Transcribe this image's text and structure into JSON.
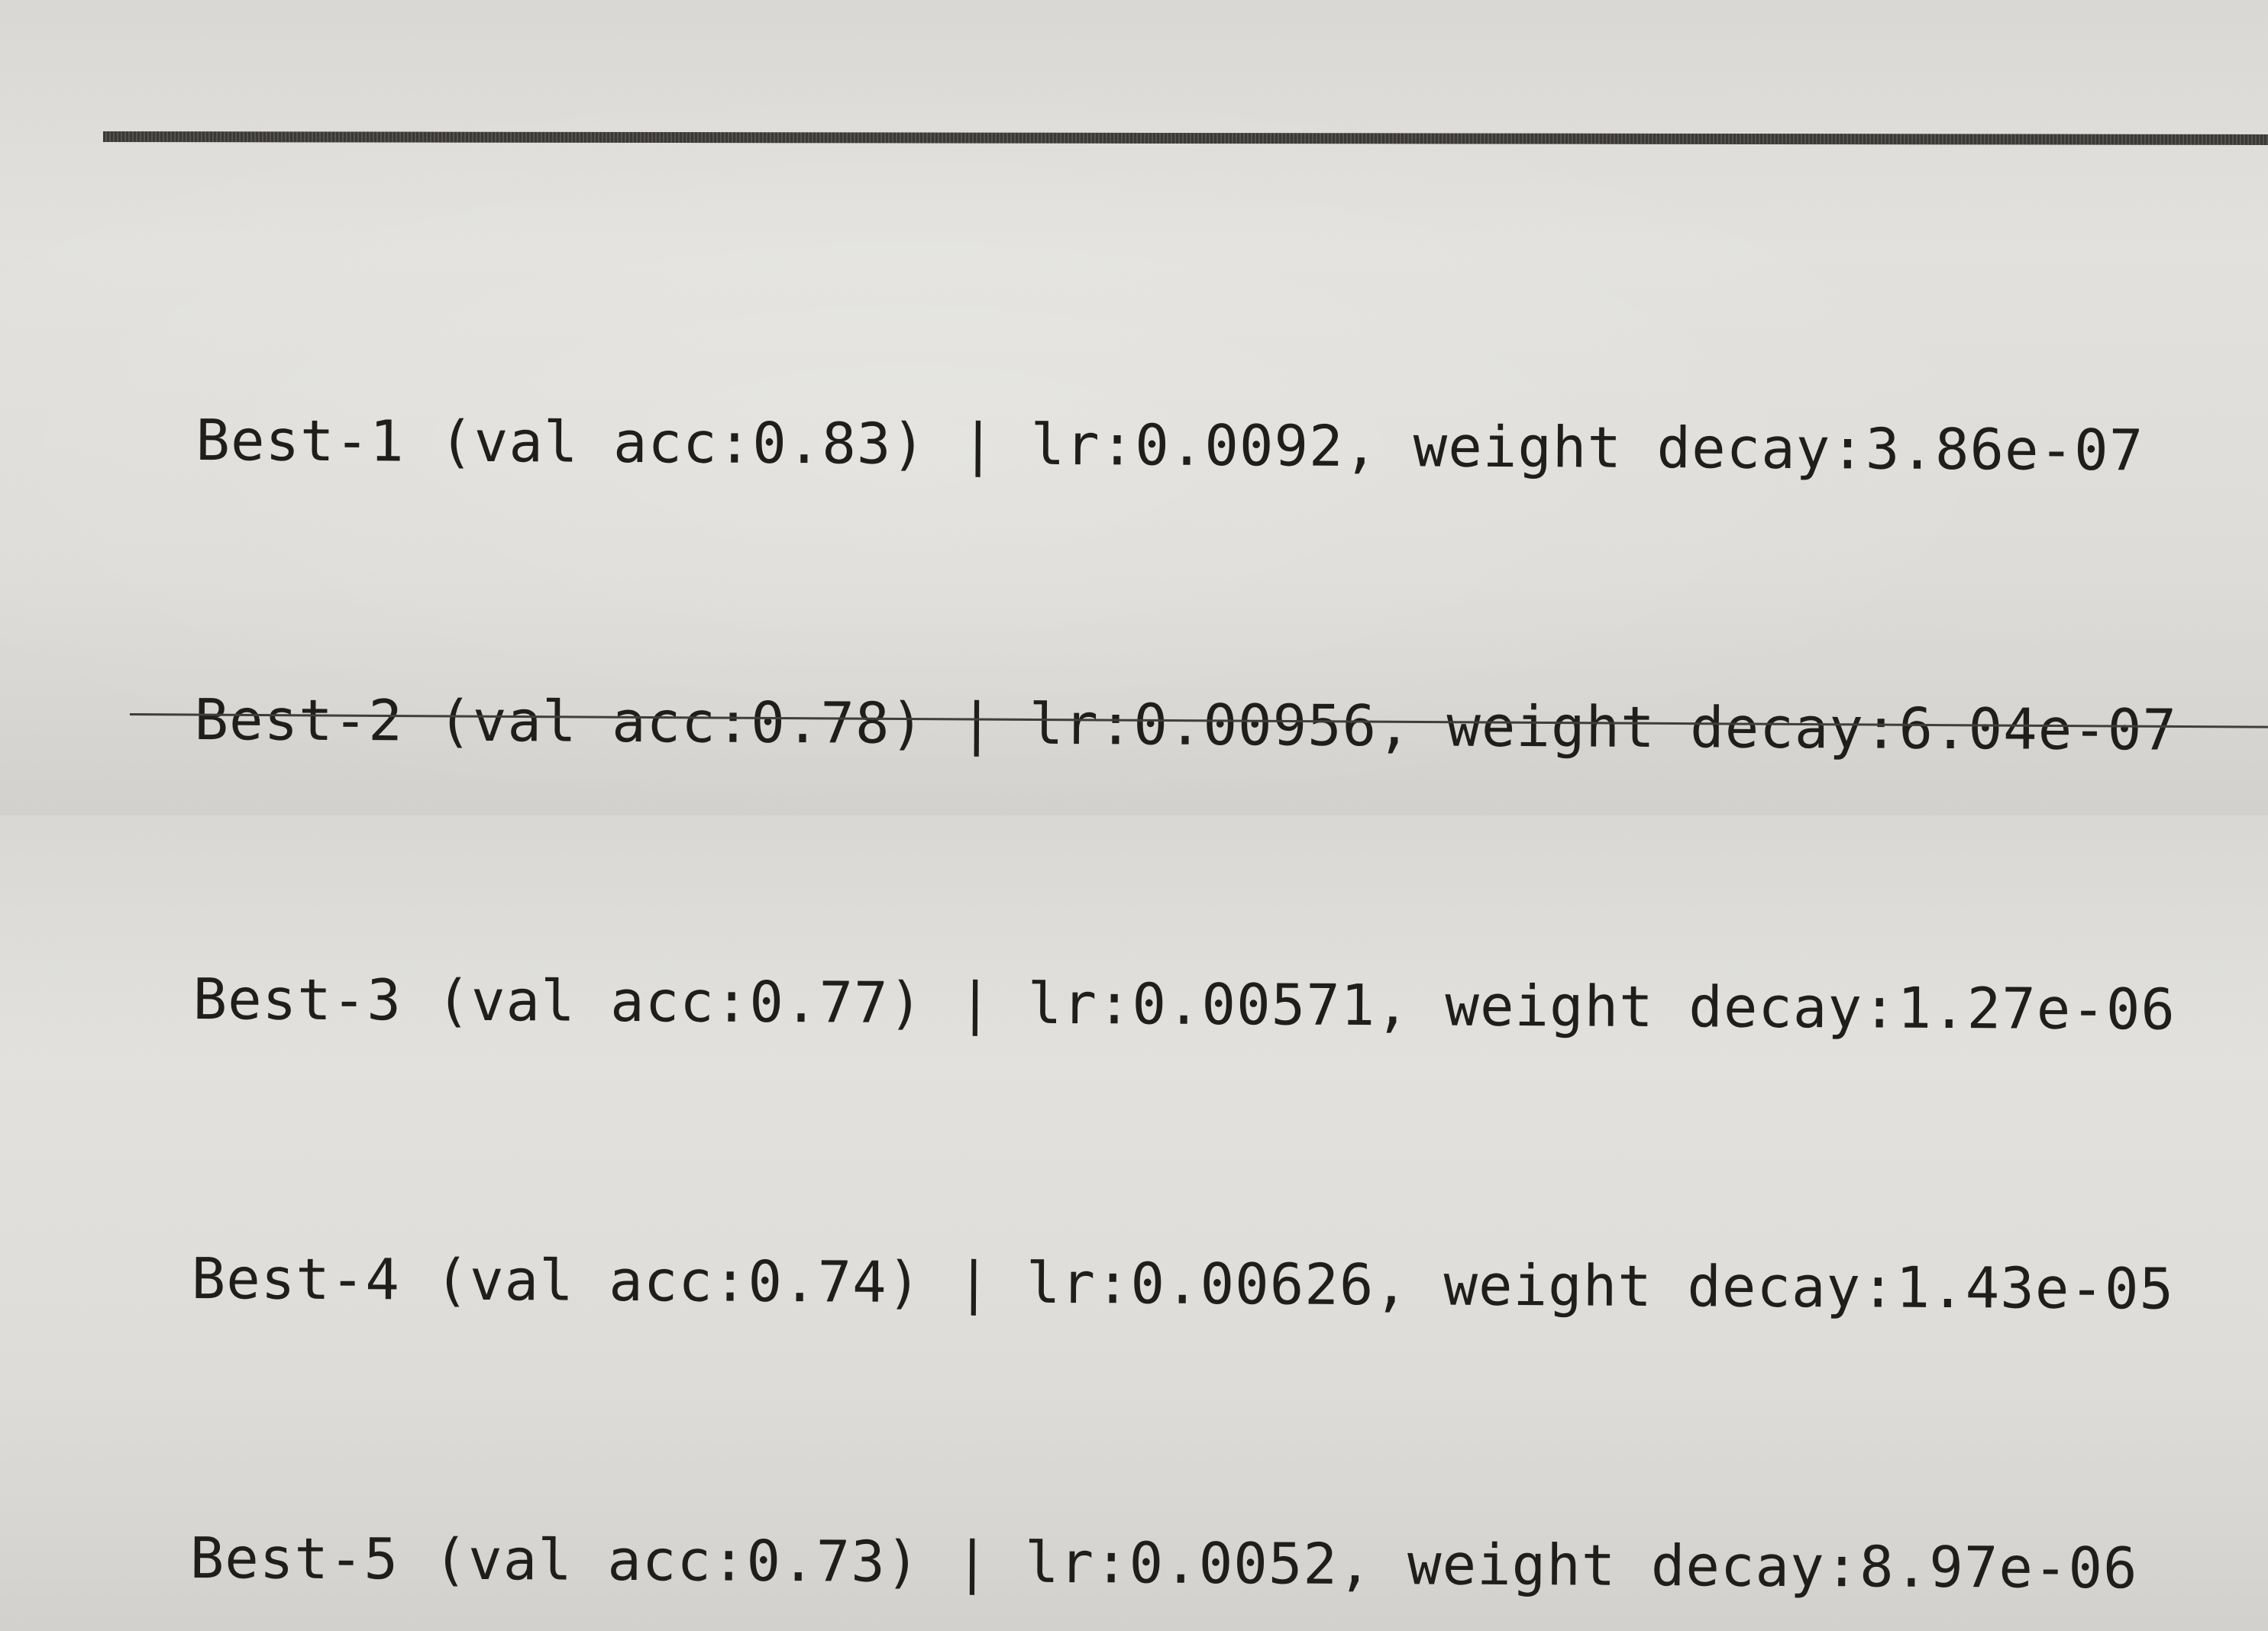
{
  "results": {
    "lines": [
      "Best-1 (val acc:0.83) | lr:0.0092, weight decay:3.86e-07",
      "Best-2 (val acc:0.78) | lr:0.00956, weight decay:6.04e-07",
      "Best-3 (val acc:0.77) | lr:0.00571, weight decay:1.27e-06",
      "Best-4 (val acc:0.74) | lr:0.00626, weight decay:1.43e-05",
      "Best-5 (val acc:0.73) | lr:0.0052, weight decay:8.97e-06"
    ]
  },
  "colors": {
    "paper": "#dedcd8",
    "ink": "#1f1e1c",
    "rule": "#3a3937"
  }
}
